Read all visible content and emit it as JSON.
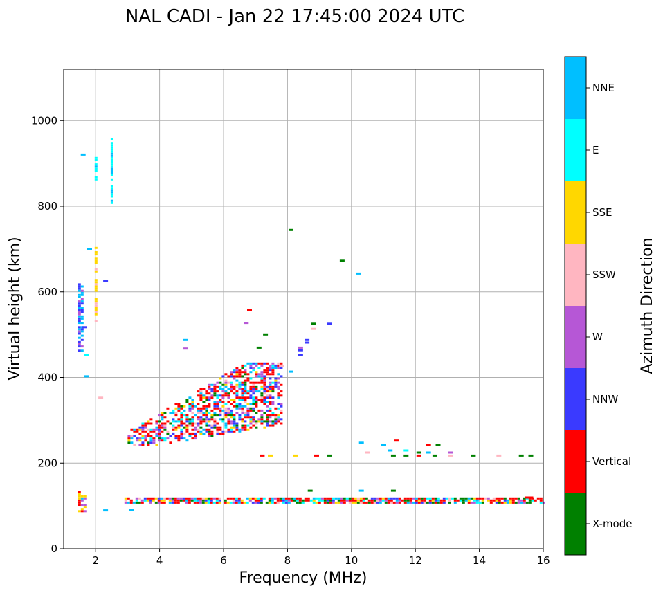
{
  "chart_data": {
    "type": "scatter",
    "title": "NAL CADI - Jan 22 17:45:00 2024 UTC",
    "xlabel": "Frequency (MHz)",
    "ylabel": "Virtual height (km)",
    "xlim": [
      1,
      16
    ],
    "ylim": [
      0,
      1120
    ],
    "xticks": [
      2,
      4,
      6,
      8,
      10,
      12,
      14,
      16
    ],
    "yticks": [
      0,
      200,
      400,
      600,
      800,
      1000
    ],
    "grid": true,
    "colorbar": {
      "title": "Azimuth Direction",
      "categories": [
        {
          "name": "X-mode",
          "color": "#008000"
        },
        {
          "name": "Vertical",
          "color": "#ff0000"
        },
        {
          "name": "NNW",
          "color": "#3a3aff"
        },
        {
          "name": "W",
          "color": "#b657d6"
        },
        {
          "name": "SSW",
          "color": "#ffb6c1"
        },
        {
          "name": "SSE",
          "color": "#ffd700"
        },
        {
          "name": "E",
          "color": "#00ffff"
        },
        {
          "name": "NNE",
          "color": "#00bfff"
        }
      ]
    },
    "regions": [
      {
        "name": "E-layer echoes",
        "f_range": [
          2.9,
          16.0
        ],
        "h_range": [
          110,
          122
        ],
        "weights": {
          "Vertical": 4,
          "X-mode": 2,
          "NNW": 1,
          "W": 1,
          "SSW": 1,
          "SSE": 1,
          "E": 1,
          "NNE": 1
        },
        "density": 0.8
      },
      {
        "name": "F-layer trace",
        "f_range": [
          3.0,
          7.8
        ],
        "h_range": [
          245,
          440
        ],
        "weights": {
          "Vertical": 6,
          "NNE": 2,
          "NNW": 2,
          "W": 2,
          "E": 1,
          "SSW": 1,
          "X-mode": 1,
          "SSE": 1
        },
        "density": 0.55
      },
      {
        "name": "Low frequency column 1.5 MHz",
        "f_range": [
          1.45,
          1.55
        ],
        "h_range": [
          465,
          625
        ],
        "weights": {
          "NNW": 3,
          "NNE": 3,
          "W": 1
        },
        "density": 0.7
      },
      {
        "name": "Low frequency column 2 MHz",
        "f_range": [
          1.97,
          2.03
        ],
        "h_range": [
          530,
          710
        ],
        "weights": {
          "SSE": 3,
          "SSW": 1
        },
        "density": 0.6
      },
      {
        "name": "Multihop 2 MHz",
        "f_range": [
          1.97,
          2.03
        ],
        "h_range": [
          865,
          920
        ],
        "weights": {
          "E": 3,
          "NNE": 1
        },
        "density": 0.8
      },
      {
        "name": "Multihop 2.5 MHz",
        "f_range": [
          2.47,
          2.53
        ],
        "h_range": [
          805,
          965
        ],
        "weights": {
          "E": 3,
          "NNE": 1
        },
        "density": 0.8
      },
      {
        "name": "Low frequency E echoes",
        "f_range": [
          1.45,
          1.65
        ],
        "h_range": [
          90,
          140
        ],
        "weights": {
          "SSE": 2,
          "Vertical": 1,
          "NNE": 1,
          "W": 1
        },
        "density": 0.7
      }
    ],
    "points": [
      {
        "f": 1.6,
        "h": 923,
        "az": "NNE"
      },
      {
        "f": 1.8,
        "h": 703,
        "az": "NNE"
      },
      {
        "f": 2.3,
        "h": 627,
        "az": "NNW"
      },
      {
        "f": 1.65,
        "h": 520,
        "az": "NNW"
      },
      {
        "f": 1.7,
        "h": 455,
        "az": "E"
      },
      {
        "f": 1.7,
        "h": 405,
        "az": "NNE"
      },
      {
        "f": 2.3,
        "h": 92,
        "az": "NNE"
      },
      {
        "f": 2.15,
        "h": 355,
        "az": "SSW"
      },
      {
        "f": 8.1,
        "h": 747,
        "az": "X-mode"
      },
      {
        "f": 9.7,
        "h": 675,
        "az": "X-mode"
      },
      {
        "f": 10.2,
        "h": 645,
        "az": "NNE"
      },
      {
        "f": 6.8,
        "h": 560,
        "az": "Vertical"
      },
      {
        "f": 6.7,
        "h": 530,
        "az": "W"
      },
      {
        "f": 8.8,
        "h": 528,
        "az": "X-mode"
      },
      {
        "f": 9.3,
        "h": 528,
        "az": "NNW"
      },
      {
        "f": 8.8,
        "h": 516,
        "az": "SSW"
      },
      {
        "f": 7.3,
        "h": 503,
        "az": "X-mode"
      },
      {
        "f": 8.6,
        "h": 490,
        "az": "NNW"
      },
      {
        "f": 8.6,
        "h": 484,
        "az": "NNW"
      },
      {
        "f": 8.4,
        "h": 472,
        "az": "W"
      },
      {
        "f": 8.4,
        "h": 466,
        "az": "NNW"
      },
      {
        "f": 8.4,
        "h": 455,
        "az": "NNW"
      },
      {
        "f": 7.1,
        "h": 472,
        "az": "X-mode"
      },
      {
        "f": 4.8,
        "h": 490,
        "az": "NNE"
      },
      {
        "f": 4.8,
        "h": 470,
        "az": "W"
      },
      {
        "f": 7.8,
        "h": 429,
        "az": "SSW"
      },
      {
        "f": 8.1,
        "h": 416,
        "az": "NNE"
      },
      {
        "f": 7.2,
        "h": 220,
        "az": "Vertical"
      },
      {
        "f": 7.45,
        "h": 220,
        "az": "SSE"
      },
      {
        "f": 8.25,
        "h": 220,
        "az": "SSE"
      },
      {
        "f": 8.9,
        "h": 220,
        "az": "Vertical"
      },
      {
        "f": 9.3,
        "h": 220,
        "az": "X-mode"
      },
      {
        "f": 10.3,
        "h": 250,
        "az": "NNE"
      },
      {
        "f": 10.5,
        "h": 227,
        "az": "SSW"
      },
      {
        "f": 11.0,
        "h": 245,
        "az": "NNE"
      },
      {
        "f": 11.2,
        "h": 232,
        "az": "NNE"
      },
      {
        "f": 11.4,
        "h": 255,
        "az": "Vertical"
      },
      {
        "f": 11.3,
        "h": 220,
        "az": "X-mode"
      },
      {
        "f": 11.7,
        "h": 232,
        "az": "E"
      },
      {
        "f": 11.7,
        "h": 220,
        "az": "X-mode"
      },
      {
        "f": 12.4,
        "h": 245,
        "az": "Vertical"
      },
      {
        "f": 12.7,
        "h": 245,
        "az": "X-mode"
      },
      {
        "f": 12.4,
        "h": 227,
        "az": "NNE"
      },
      {
        "f": 12.1,
        "h": 227,
        "az": "X-mode"
      },
      {
        "f": 12.1,
        "h": 220,
        "az": "Vertical"
      },
      {
        "f": 12.6,
        "h": 220,
        "az": "X-mode"
      },
      {
        "f": 13.1,
        "h": 227,
        "az": "W"
      },
      {
        "f": 13.1,
        "h": 220,
        "az": "SSW"
      },
      {
        "f": 13.8,
        "h": 220,
        "az": "X-mode"
      },
      {
        "f": 14.6,
        "h": 220,
        "az": "SSW"
      },
      {
        "f": 15.3,
        "h": 220,
        "az": "X-mode"
      },
      {
        "f": 15.6,
        "h": 220,
        "az": "X-mode"
      },
      {
        "f": 8.7,
        "h": 138,
        "az": "X-mode"
      },
      {
        "f": 11.3,
        "h": 138,
        "az": "X-mode"
      },
      {
        "f": 10.3,
        "h": 138,
        "az": "NNE"
      },
      {
        "f": 15.5,
        "h": 122,
        "az": "Vertical"
      },
      {
        "f": 15.6,
        "h": 122,
        "az": "Vertical"
      },
      {
        "f": 3.1,
        "h": 93,
        "az": "NNE"
      }
    ]
  }
}
